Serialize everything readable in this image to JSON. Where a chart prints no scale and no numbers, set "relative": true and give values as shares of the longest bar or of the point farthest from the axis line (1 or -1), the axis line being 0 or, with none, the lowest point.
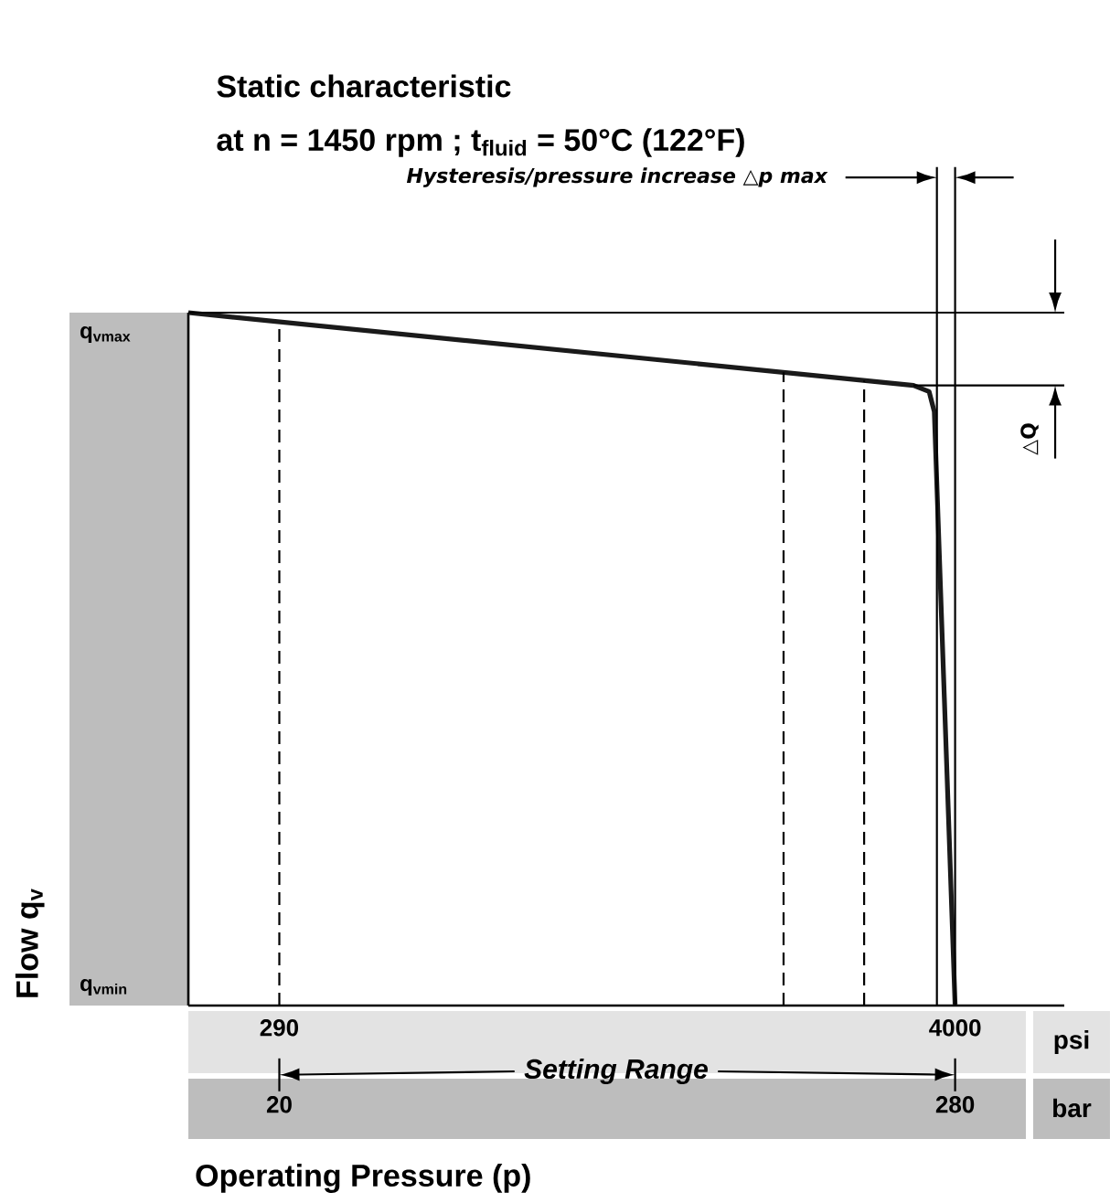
{
  "chart_data": {
    "type": "line",
    "title": "Static characteristic",
    "subtitle": "at n = 1450 rpm ; t$_{fluid}$ = 50°C (122°F)",
    "xlabel": "Operating Pressure (p)",
    "ylabel": "Flow q$_{v}$",
    "relative": true,
    "x": [
      -15,
      264,
      270,
      272,
      280
    ],
    "values": [
      1,
      0.895,
      0.886,
      0.857,
      0
    ],
    "color": "#1a1a1a",
    "xlim": [
      -15,
      322
    ],
    "xticks": [
      20,
      280
    ],
    "x2lim": [
      -209,
      4599
    ],
    "x2ticks": [
      290,
      4000
    ],
    "ref_lines": [
      {
        "axis": "y",
        "value": 1,
        "line_style": "solid"
      },
      {
        "axis": "y",
        "value": 0.895,
        "line_style": "solid"
      },
      {
        "axis": "x",
        "value": 20,
        "line_style": "dashed"
      },
      {
        "axis": "x",
        "value": 214,
        "line_style": "dashed"
      },
      {
        "axis": "x",
        "value": 245,
        "line_style": "dashed"
      },
      {
        "axis": "x",
        "value": 273,
        "line_style": "solid"
      },
      {
        "axis": "x",
        "value": 280,
        "line_style": "solid"
      }
    ],
    "annotations": [
      "Hysteresis/pressure increase △p max",
      "△Q",
      "Setting Range",
      "psi",
      "bar",
      "q$_{vmax}$",
      "q$_{vmin}$"
    ]
  }
}
